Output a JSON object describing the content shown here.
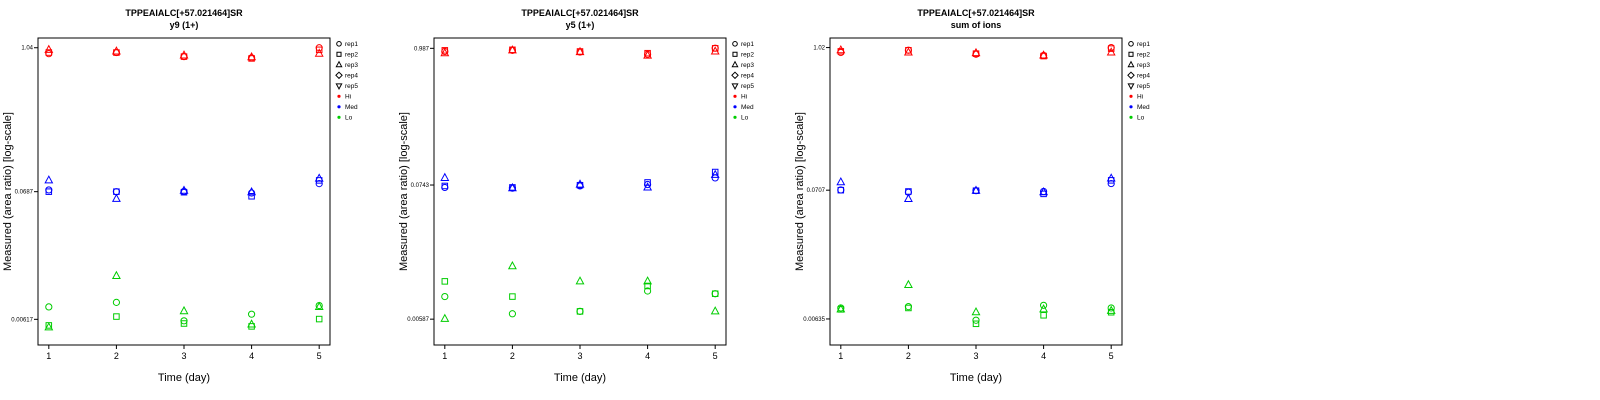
{
  "figure": {
    "background": "#FFFFFF"
  },
  "chart_data": [
    {
      "type": "scatter",
      "title": "TPPEAIALC[+57.021464]SR",
      "subtitle": "y9 (1+)",
      "xlabel": "Time (day)",
      "ylabel": "Measured (area ratio) [log-scale]",
      "x_ticks": [
        "1",
        "2",
        "3",
        "4",
        "5"
      ],
      "xlim": [
        0.84,
        5.16
      ],
      "y_scale": "log",
      "ylim": [
        0.0038,
        1.25
      ],
      "y_ticks": [
        {
          "v": 1.04,
          "label": "1.04"
        },
        {
          "v": 0.0687,
          "label": "0.0687"
        },
        {
          "v": 0.00617,
          "label": "0.00617"
        }
      ],
      "grid": false,
      "legend_position": "right",
      "legend": {
        "reps": [
          {
            "label": "rep1",
            "symbol": "circle"
          },
          {
            "label": "rep2",
            "symbol": "square"
          },
          {
            "label": "rep3",
            "symbol": "triangle-up"
          },
          {
            "label": "rep4",
            "symbol": "diamond"
          },
          {
            "label": "rep5",
            "symbol": "triangle-down"
          }
        ],
        "levels": [
          {
            "label": "Hi",
            "color": "#FF0000"
          },
          {
            "label": "Med",
            "color": "#0000FF"
          },
          {
            "label": "Lo",
            "color": "#00CD00"
          }
        ]
      },
      "x": [
        1,
        2,
        3,
        4,
        5
      ],
      "series": [
        {
          "name": "Hi rep1",
          "level": "Hi",
          "rep": "rep1",
          "symbol": "circle",
          "color": "#FF0000",
          "y": [
            0.93,
            0.95,
            0.88,
            0.86,
            1.04
          ]
        },
        {
          "name": "Hi rep2",
          "level": "Hi",
          "rep": "rep2",
          "symbol": "square",
          "color": "#FF0000",
          "y": [
            0.95,
            0.95,
            0.88,
            0.85,
            1.0
          ]
        },
        {
          "name": "Hi rep3",
          "level": "Hi",
          "rep": "rep3",
          "symbol": "triangle-up",
          "color": "#FF0000",
          "y": [
            1.0,
            0.97,
            0.9,
            0.87,
            0.93
          ]
        },
        {
          "name": "Med rep1",
          "level": "Med",
          "rep": "rep1",
          "symbol": "circle",
          "color": "#0000FF",
          "y": [
            0.071,
            0.0687,
            0.069,
            0.067,
            0.08
          ]
        },
        {
          "name": "Med rep2",
          "level": "Med",
          "rep": "rep2",
          "symbol": "square",
          "color": "#0000FF",
          "y": [
            0.0687,
            0.0687,
            0.068,
            0.063,
            0.085
          ]
        },
        {
          "name": "Med rep3",
          "level": "Med",
          "rep": "rep3",
          "symbol": "triangle-up",
          "color": "#0000FF",
          "y": [
            0.085,
            0.06,
            0.07,
            0.068,
            0.088
          ]
        },
        {
          "name": "Lo rep1",
          "level": "Lo",
          "rep": "rep1",
          "symbol": "circle",
          "color": "#00CD00",
          "y": [
            0.0078,
            0.0085,
            0.006,
            0.0068,
            0.008
          ]
        },
        {
          "name": "Lo rep2",
          "level": "Lo",
          "rep": "rep2",
          "symbol": "square",
          "color": "#00CD00",
          "y": [
            0.0055,
            0.0065,
            0.0057,
            0.0054,
            0.0062
          ]
        },
        {
          "name": "Lo rep3",
          "level": "Lo",
          "rep": "rep3",
          "symbol": "triangle-up",
          "color": "#00CD00",
          "y": [
            0.0053,
            0.014,
            0.0072,
            0.0056,
            0.0078
          ]
        }
      ]
    },
    {
      "type": "scatter",
      "title": "TPPEAIALC[+57.021464]SR",
      "subtitle": "y5 (1+)",
      "xlabel": "Time (day)",
      "ylabel": "Measured (area ratio) [log-scale]",
      "x_ticks": [
        "1",
        "2",
        "3",
        "4",
        "5"
      ],
      "xlim": [
        0.84,
        5.16
      ],
      "y_scale": "log",
      "ylim": [
        0.0036,
        1.2
      ],
      "y_ticks": [
        {
          "v": 0.987,
          "label": "0.987"
        },
        {
          "v": 0.0743,
          "label": "0.0743"
        },
        {
          "v": 0.00587,
          "label": "0.00587"
        }
      ],
      "grid": false,
      "legend_position": "right",
      "legend": {
        "reps": [
          {
            "label": "rep1",
            "symbol": "circle"
          },
          {
            "label": "rep2",
            "symbol": "square"
          },
          {
            "label": "rep3",
            "symbol": "triangle-up"
          },
          {
            "label": "rep4",
            "symbol": "diamond"
          },
          {
            "label": "rep5",
            "symbol": "triangle-down"
          }
        ],
        "levels": [
          {
            "label": "Hi",
            "color": "#FF0000"
          },
          {
            "label": "Med",
            "color": "#0000FF"
          },
          {
            "label": "Lo",
            "color": "#00CD00"
          }
        ]
      },
      "x": [
        1,
        2,
        3,
        4,
        5
      ],
      "series": [
        {
          "name": "Hi rep1",
          "level": "Hi",
          "rep": "rep1",
          "symbol": "circle",
          "color": "#FF0000",
          "y": [
            0.93,
            0.95,
            0.92,
            0.88,
            0.99
          ]
        },
        {
          "name": "Hi rep2",
          "level": "Hi",
          "rep": "rep2",
          "symbol": "square",
          "color": "#FF0000",
          "y": [
            0.95,
            0.96,
            0.93,
            0.9,
            0.987
          ]
        },
        {
          "name": "Hi rep3",
          "level": "Hi",
          "rep": "rep3",
          "symbol": "triangle-up",
          "color": "#FF0000",
          "y": [
            0.9,
            0.95,
            0.92,
            0.86,
            0.93
          ]
        },
        {
          "name": "Med rep1",
          "level": "Med",
          "rep": "rep1",
          "symbol": "circle",
          "color": "#0000FF",
          "y": [
            0.071,
            0.07,
            0.073,
            0.075,
            0.085
          ]
        },
        {
          "name": "Med rep2",
          "level": "Med",
          "rep": "rep2",
          "symbol": "square",
          "color": "#0000FF",
          "y": [
            0.073,
            0.071,
            0.074,
            0.078,
            0.095
          ]
        },
        {
          "name": "Med rep3",
          "level": "Med",
          "rep": "rep3",
          "symbol": "triangle-up",
          "color": "#0000FF",
          "y": [
            0.085,
            0.07,
            0.075,
            0.071,
            0.09
          ]
        },
        {
          "name": "Lo rep1",
          "level": "Lo",
          "rep": "rep1",
          "symbol": "circle",
          "color": "#00CD00",
          "y": [
            0.009,
            0.0065,
            0.0068,
            0.01,
            0.0095
          ]
        },
        {
          "name": "Lo rep2",
          "level": "Lo",
          "rep": "rep2",
          "symbol": "square",
          "color": "#00CD00",
          "y": [
            0.012,
            0.009,
            0.0068,
            0.011,
            0.0095
          ]
        },
        {
          "name": "Lo rep3",
          "level": "Lo",
          "rep": "rep3",
          "symbol": "triangle-up",
          "color": "#00CD00",
          "y": [
            0.0059,
            0.016,
            0.012,
            0.012,
            0.0068
          ]
        }
      ]
    },
    {
      "type": "scatter",
      "title": "TPPEAIALC[+57.021464]SR",
      "subtitle": "sum of ions",
      "xlabel": "Time (day)",
      "ylabel": "Measured (area ratio) [log-scale]",
      "x_ticks": [
        "1",
        "2",
        "3",
        "4",
        "5"
      ],
      "xlim": [
        0.84,
        5.16
      ],
      "y_scale": "log",
      "ylim": [
        0.0039,
        1.22
      ],
      "y_ticks": [
        {
          "v": 1.02,
          "label": "1.02"
        },
        {
          "v": 0.0707,
          "label": "0.0707"
        },
        {
          "v": 0.00635,
          "label": "0.00635"
        }
      ],
      "grid": false,
      "legend_position": "right",
      "legend": {
        "reps": [
          {
            "label": "rep1",
            "symbol": "circle"
          },
          {
            "label": "rep2",
            "symbol": "square"
          },
          {
            "label": "rep3",
            "symbol": "triangle-up"
          },
          {
            "label": "rep4",
            "symbol": "diamond"
          },
          {
            "label": "rep5",
            "symbol": "triangle-down"
          }
        ],
        "levels": [
          {
            "label": "Hi",
            "color": "#FF0000"
          },
          {
            "label": "Med",
            "color": "#0000FF"
          },
          {
            "label": "Lo",
            "color": "#00CD00"
          }
        ]
      },
      "x": [
        1,
        2,
        3,
        4,
        5
      ],
      "series": [
        {
          "name": "Hi rep1",
          "level": "Hi",
          "rep": "rep1",
          "symbol": "circle",
          "color": "#FF0000",
          "y": [
            0.93,
            0.97,
            0.9,
            0.88,
            1.02
          ]
        },
        {
          "name": "Hi rep2",
          "level": "Hi",
          "rep": "rep2",
          "symbol": "square",
          "color": "#FF0000",
          "y": [
            0.95,
            0.97,
            0.91,
            0.87,
            1.0
          ]
        },
        {
          "name": "Hi rep3",
          "level": "Hi",
          "rep": "rep3",
          "symbol": "triangle-up",
          "color": "#FF0000",
          "y": [
            0.97,
            0.93,
            0.92,
            0.88,
            0.93
          ]
        },
        {
          "name": "Med rep1",
          "level": "Med",
          "rep": "rep1",
          "symbol": "circle",
          "color": "#0000FF",
          "y": [
            0.071,
            0.068,
            0.07,
            0.069,
            0.08
          ]
        },
        {
          "name": "Med rep2",
          "level": "Med",
          "rep": "rep2",
          "symbol": "square",
          "color": "#0000FF",
          "y": [
            0.0707,
            0.069,
            0.07,
            0.066,
            0.085
          ]
        },
        {
          "name": "Med rep3",
          "level": "Med",
          "rep": "rep3",
          "symbol": "triangle-up",
          "color": "#0000FF",
          "y": [
            0.082,
            0.06,
            0.07,
            0.068,
            0.088
          ]
        },
        {
          "name": "Lo rep1",
          "level": "Lo",
          "rep": "rep1",
          "symbol": "circle",
          "color": "#00CD00",
          "y": [
            0.0078,
            0.008,
            0.0062,
            0.0082,
            0.0078
          ]
        },
        {
          "name": "Lo rep2",
          "level": "Lo",
          "rep": "rep2",
          "symbol": "square",
          "color": "#00CD00",
          "y": [
            0.0076,
            0.0078,
            0.0058,
            0.0068,
            0.0072
          ]
        },
        {
          "name": "Lo rep3",
          "level": "Lo",
          "rep": "rep3",
          "symbol": "triangle-up",
          "color": "#00CD00",
          "y": [
            0.0076,
            0.012,
            0.0072,
            0.0076,
            0.0074
          ]
        }
      ]
    }
  ]
}
